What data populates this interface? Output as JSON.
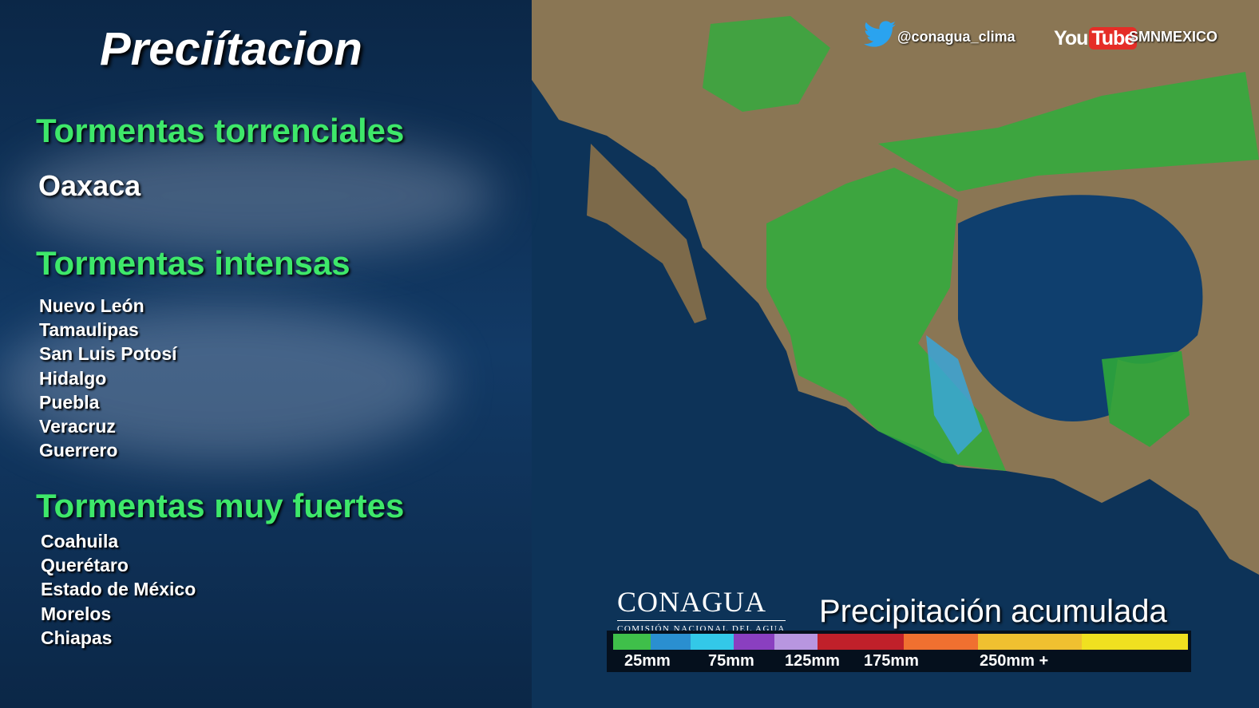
{
  "title": "Preciítacion",
  "sections": [
    {
      "heading": "Tormentas torrenciales",
      "items": [
        "Oaxaca"
      ]
    },
    {
      "heading": "Tormentas intensas",
      "items": [
        "Nuevo León",
        "Tamaulipas",
        "San Luis Potosí",
        "Hidalgo",
        "Puebla",
        "Veracruz",
        "Guerrero"
      ]
    },
    {
      "heading": "Tormentas muy fuertes",
      "items": [
        "Coahuila",
        "Querétaro",
        "Estado de México",
        "Morelos",
        "Chiapas"
      ]
    }
  ],
  "social": {
    "twitter_icon": "twitter-bird-icon",
    "twitter": "@conagua_clima",
    "youtube_you": "You",
    "youtube_tube": "Tube",
    "youtube": "SMNMEXICO"
  },
  "logo": {
    "name": "CONAGUA",
    "subtitle": "COMISIÓN NACIONAL DEL AGUA"
  },
  "legend": {
    "title": "Precipitación acumulada",
    "colors": [
      "#3fbf4a",
      "#2a8fd0",
      "#33c8e8",
      "#8a3fc0",
      "#b896e0",
      "#c0202a",
      "#f07030",
      "#f0c030",
      "#f0e020"
    ],
    "labels": [
      "25mm",
      "75mm",
      "125mm",
      "175mm",
      "250mm +"
    ]
  }
}
